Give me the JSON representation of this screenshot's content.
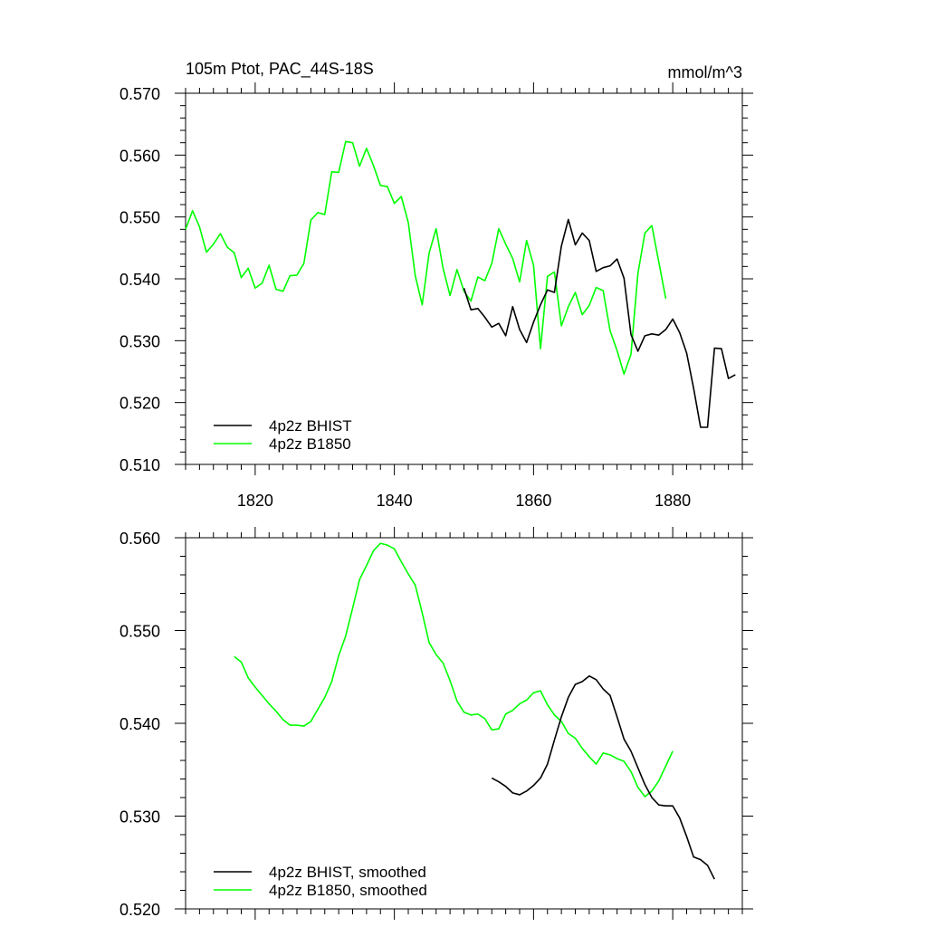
{
  "chart_data": [
    {
      "type": "line",
      "title": "105m Ptot, PAC_44S-18S",
      "units": "mmol/m^3",
      "xlim": [
        1810,
        1890
      ],
      "ylim": [
        0.51,
        0.57
      ],
      "xticks": [
        1820,
        1840,
        1860,
        1880
      ],
      "xtick_labels": [
        "1820",
        "1840",
        "1860",
        "1880"
      ],
      "yticks": [
        0.51,
        0.52,
        0.53,
        0.54,
        0.55,
        0.56,
        0.57
      ],
      "ytick_labels": [
        "0.510",
        "0.520",
        "0.530",
        "0.540",
        "0.550",
        "0.560",
        "0.570"
      ],
      "legend_position": "bottom-left",
      "series": [
        {
          "name": "4p2z BHIST",
          "color": "#000000",
          "x": [
            1850,
            1851,
            1852,
            1853,
            1854,
            1855,
            1856,
            1857,
            1858,
            1859,
            1860,
            1861,
            1862,
            1863,
            1864,
            1865,
            1866,
            1867,
            1868,
            1869,
            1870,
            1871,
            1872,
            1873,
            1874,
            1875,
            1876,
            1877,
            1878,
            1879,
            1880,
            1881,
            1882,
            1883,
            1884,
            1885,
            1886,
            1887,
            1888,
            1889
          ],
          "y": [
            0.5385,
            0.535,
            0.5352,
            0.5338,
            0.5322,
            0.5328,
            0.5308,
            0.5355,
            0.5318,
            0.5297,
            0.533,
            0.5358,
            0.5382,
            0.5378,
            0.5453,
            0.5496,
            0.5455,
            0.5474,
            0.5462,
            0.5412,
            0.5418,
            0.5421,
            0.5432,
            0.5401,
            0.531,
            0.5283,
            0.5308,
            0.5311,
            0.5309,
            0.5318,
            0.5335,
            0.5313,
            0.528,
            0.5223,
            0.516,
            0.516,
            0.5288,
            0.5287,
            0.5239,
            0.5245
          ]
        },
        {
          "name": "4p2z B1850",
          "color": "#00ff00",
          "x": [
            1810,
            1811,
            1812,
            1813,
            1814,
            1815,
            1816,
            1817,
            1818,
            1819,
            1820,
            1821,
            1822,
            1823,
            1824,
            1825,
            1826,
            1827,
            1828,
            1829,
            1830,
            1831,
            1832,
            1833,
            1834,
            1835,
            1836,
            1837,
            1838,
            1839,
            1840,
            1841,
            1842,
            1843,
            1844,
            1845,
            1846,
            1847,
            1848,
            1849,
            1850,
            1851,
            1852,
            1853,
            1854,
            1855,
            1856,
            1857,
            1858,
            1859,
            1860,
            1861,
            1862,
            1863,
            1864,
            1865,
            1866,
            1867,
            1868,
            1869,
            1870,
            1871,
            1872,
            1873,
            1874,
            1875,
            1876,
            1877,
            1878,
            1879
          ],
          "y": [
            0.548,
            0.551,
            0.5484,
            0.5443,
            0.5456,
            0.5473,
            0.5451,
            0.5442,
            0.5402,
            0.5417,
            0.5385,
            0.5393,
            0.5422,
            0.5383,
            0.538,
            0.5405,
            0.5406,
            0.5425,
            0.5495,
            0.5507,
            0.5504,
            0.5573,
            0.5572,
            0.5622,
            0.562,
            0.5582,
            0.5611,
            0.5583,
            0.5551,
            0.5549,
            0.5522,
            0.5533,
            0.5491,
            0.5405,
            0.5358,
            0.5442,
            0.5481,
            0.5417,
            0.5373,
            0.5415,
            0.538,
            0.5364,
            0.5403,
            0.5397,
            0.5425,
            0.5481,
            0.5456,
            0.5433,
            0.5395,
            0.5462,
            0.5422,
            0.5287,
            0.5404,
            0.5411,
            0.5324,
            0.5355,
            0.5378,
            0.5342,
            0.5357,
            0.5386,
            0.5381,
            0.5316,
            0.5284,
            0.5246,
            0.5278,
            0.5409,
            0.5474,
            0.5486,
            0.5427,
            0.5368
          ]
        }
      ]
    },
    {
      "type": "line",
      "title": "",
      "xlim": [
        1810,
        1890
      ],
      "ylim": [
        0.52,
        0.56
      ],
      "xticks": [
        1820,
        1840,
        1860,
        1880
      ],
      "yticks": [
        0.52,
        0.53,
        0.54,
        0.55,
        0.56
      ],
      "ytick_labels": [
        "0.520",
        "0.530",
        "0.540",
        "0.550",
        "0.560"
      ],
      "legend_position": "bottom-left",
      "series": [
        {
          "name": "4p2z BHIST, smoothed",
          "color": "#000000",
          "x": [
            1854,
            1855,
            1856,
            1857,
            1858,
            1859,
            1860,
            1861,
            1862,
            1863,
            1864,
            1865,
            1866,
            1867,
            1868,
            1869,
            1870,
            1871,
            1872,
            1873,
            1874,
            1875,
            1876,
            1877,
            1878,
            1879,
            1880,
            1881,
            1882,
            1883,
            1884,
            1885,
            1886
          ],
          "y": [
            0.5341,
            0.5337,
            0.5332,
            0.5325,
            0.5323,
            0.5327,
            0.5333,
            0.5341,
            0.5356,
            0.5382,
            0.5407,
            0.5428,
            0.5442,
            0.5445,
            0.5451,
            0.5447,
            0.5437,
            0.543,
            0.5407,
            0.5383,
            0.537,
            0.5352,
            0.5334,
            0.532,
            0.5312,
            0.5311,
            0.5311,
            0.5298,
            0.5278,
            0.5256,
            0.5253,
            0.5247,
            0.5232
          ]
        },
        {
          "name": "4p2z B1850, smoothed",
          "color": "#00ff00",
          "x": [
            1817,
            1818,
            1819,
            1820,
            1821,
            1822,
            1823,
            1824,
            1825,
            1826,
            1827,
            1828,
            1829,
            1830,
            1831,
            1832,
            1833,
            1834,
            1835,
            1836,
            1837,
            1838,
            1839,
            1840,
            1841,
            1842,
            1843,
            1844,
            1845,
            1846,
            1847,
            1848,
            1849,
            1850,
            1851,
            1852,
            1853,
            1854,
            1855,
            1856,
            1857,
            1858,
            1859,
            1860,
            1861,
            1862,
            1863,
            1864,
            1865,
            1866,
            1867,
            1868,
            1869,
            1870,
            1871,
            1872,
            1873,
            1874,
            1875,
            1876,
            1877,
            1878,
            1879,
            1880
          ],
          "y": [
            0.5472,
            0.5466,
            0.5449,
            0.5439,
            0.543,
            0.5421,
            0.5413,
            0.5404,
            0.5398,
            0.5398,
            0.5397,
            0.5402,
            0.5415,
            0.5428,
            0.5445,
            0.5473,
            0.5494,
            0.5524,
            0.5555,
            0.557,
            0.5586,
            0.5594,
            0.5592,
            0.5588,
            0.5574,
            0.5561,
            0.5549,
            0.5519,
            0.5487,
            0.5474,
            0.5465,
            0.5446,
            0.5424,
            0.5412,
            0.5409,
            0.541,
            0.5405,
            0.5393,
            0.5394,
            0.541,
            0.5414,
            0.5421,
            0.5425,
            0.5433,
            0.5435,
            0.542,
            0.5409,
            0.5402,
            0.5389,
            0.5384,
            0.5373,
            0.5364,
            0.5356,
            0.5368,
            0.5366,
            0.5362,
            0.5359,
            0.5348,
            0.5331,
            0.5321,
            0.5327,
            0.5338,
            0.5354,
            0.537
          ]
        }
      ]
    }
  ]
}
